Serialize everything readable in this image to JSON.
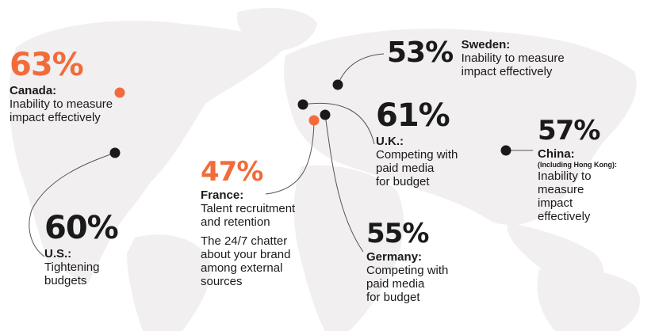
{
  "colors": {
    "accent": "#f26b3a",
    "marker": "#1a1a1a",
    "map": "#f1efef",
    "text": "#1a1a1a"
  },
  "callouts": {
    "canada": {
      "percent": "63%",
      "country": "Canada:",
      "lines": [
        "Inability to measure",
        "impact effectively"
      ]
    },
    "us": {
      "percent": "60%",
      "country": "U.S.:",
      "lines": [
        "Tightening",
        "budgets"
      ]
    },
    "france": {
      "percent": "47%",
      "country": "France:",
      "lines": [
        "Talent recruitment",
        "and retention"
      ],
      "lines2": [
        "The 24/7 chatter",
        "about your brand",
        "among external",
        "sources"
      ]
    },
    "sweden": {
      "percent": "53%",
      "country": "Sweden:",
      "lines": [
        "Inability to measure",
        "impact effectively"
      ]
    },
    "uk": {
      "percent": "61%",
      "country": "U.K.:",
      "lines": [
        "Competing with",
        "paid media",
        "for budget"
      ]
    },
    "germany": {
      "percent": "55%",
      "country": "Germany:",
      "lines": [
        "Competing with",
        "paid media",
        "for budget"
      ]
    },
    "china": {
      "percent": "57%",
      "country": "China:",
      "note": "(Including Hong Kong):",
      "lines": [
        "Inability to",
        "measure",
        "impact",
        "effectively"
      ]
    }
  }
}
